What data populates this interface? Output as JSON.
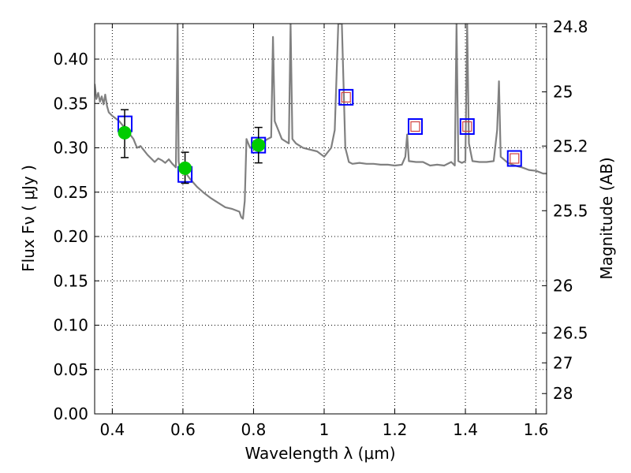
{
  "chart_data": {
    "type": "line",
    "xlabel": "Wavelength  λ (μm)",
    "ylabel": "Flux  Fν  ( μJy )",
    "ylabel_right": "Magnitude (AB)",
    "xlim": [
      0.35,
      1.63
    ],
    "ylim": [
      0.0,
      0.44
    ],
    "grid": true,
    "x_ticks": [
      0.4,
      0.6,
      0.8,
      1.0,
      1.2,
      1.4,
      1.6
    ],
    "x_tick_labels": [
      "0.4",
      "0.6",
      "0.8",
      "1",
      "1.2",
      "1.4",
      "1.6"
    ],
    "y_ticks": [
      0.0,
      0.05,
      0.1,
      0.15,
      0.2,
      0.25,
      0.3,
      0.35,
      0.4
    ],
    "y_tick_labels": [
      "0.00",
      "0.05",
      "0.10",
      "0.15",
      "0.20",
      "0.25",
      "0.30",
      "0.35",
      "0.40"
    ],
    "mag_ticks": [
      24.8,
      25,
      25.2,
      25.5,
      26,
      26.5,
      27,
      28
    ],
    "mag_tick_labels": [
      "24.8",
      "25",
      "25.2",
      "25.5",
      "26",
      "26.5",
      "27",
      "28"
    ],
    "series": [
      {
        "kind": "spectrum",
        "color": "#808080",
        "x": [
          0.35,
          0.355,
          0.36,
          0.365,
          0.37,
          0.375,
          0.38,
          0.385,
          0.39,
          0.4,
          0.41,
          0.42,
          0.43,
          0.44,
          0.45,
          0.46,
          0.47,
          0.48,
          0.49,
          0.5,
          0.51,
          0.52,
          0.53,
          0.54,
          0.55,
          0.56,
          0.57,
          0.58,
          0.585,
          0.588,
          0.59,
          0.6,
          0.62,
          0.64,
          0.66,
          0.68,
          0.7,
          0.72,
          0.74,
          0.76,
          0.765,
          0.77,
          0.775,
          0.78,
          0.79,
          0.8,
          0.82,
          0.84,
          0.85,
          0.855,
          0.86,
          0.87,
          0.88,
          0.9,
          0.905,
          0.91,
          0.92,
          0.94,
          0.96,
          0.98,
          1.0,
          1.02,
          1.03,
          1.04,
          1.05,
          1.06,
          1.065,
          1.07,
          1.08,
          1.1,
          1.12,
          1.14,
          1.16,
          1.18,
          1.2,
          1.22,
          1.23,
          1.235,
          1.24,
          1.26,
          1.28,
          1.3,
          1.32,
          1.34,
          1.36,
          1.37,
          1.375,
          1.38,
          1.39,
          1.4,
          1.405,
          1.41,
          1.42,
          1.44,
          1.46,
          1.48,
          1.49,
          1.495,
          1.5,
          1.52,
          1.54,
          1.56,
          1.58,
          1.6,
          1.62,
          1.63
        ],
        "y": [
          0.372,
          0.355,
          0.362,
          0.352,
          0.358,
          0.349,
          0.36,
          0.347,
          0.34,
          0.336,
          0.333,
          0.33,
          0.325,
          0.323,
          0.315,
          0.31,
          0.3,
          0.302,
          0.297,
          0.292,
          0.288,
          0.284,
          0.288,
          0.286,
          0.283,
          0.287,
          0.282,
          0.278,
          0.44,
          0.285,
          0.279,
          0.276,
          0.265,
          0.256,
          0.249,
          0.243,
          0.238,
          0.233,
          0.231,
          0.228,
          0.222,
          0.22,
          0.24,
          0.31,
          0.3,
          0.301,
          0.305,
          0.31,
          0.312,
          0.425,
          0.33,
          0.32,
          0.31,
          0.305,
          0.44,
          0.31,
          0.305,
          0.3,
          0.298,
          0.296,
          0.29,
          0.3,
          0.32,
          0.44,
          0.44,
          0.3,
          0.292,
          0.284,
          0.282,
          0.283,
          0.282,
          0.282,
          0.281,
          0.281,
          0.28,
          0.281,
          0.29,
          0.315,
          0.285,
          0.284,
          0.284,
          0.28,
          0.281,
          0.28,
          0.284,
          0.28,
          0.44,
          0.285,
          0.283,
          0.285,
          0.44,
          0.305,
          0.285,
          0.284,
          0.284,
          0.285,
          0.32,
          0.375,
          0.29,
          0.283,
          0.28,
          0.278,
          0.275,
          0.274,
          0.271,
          0.271
        ]
      },
      {
        "kind": "model-photometry",
        "marker": "square",
        "edge_color": "#0000ff",
        "x": [
          0.436,
          0.606,
          0.814,
          1.062,
          1.258,
          1.405,
          1.539
        ],
        "y": [
          0.327,
          0.27,
          0.303,
          0.357,
          0.324,
          0.324,
          0.288
        ]
      },
      {
        "kind": "model-photometry-inner",
        "marker": "square",
        "edge_color": "#d04040",
        "x": [
          1.062,
          1.258,
          1.405,
          1.539
        ],
        "y": [
          0.357,
          0.324,
          0.324,
          0.288
        ]
      },
      {
        "kind": "observed",
        "marker": "circle",
        "color": "#00cc00",
        "x": [
          0.435,
          0.606,
          0.814
        ],
        "y": [
          0.317,
          0.277,
          0.303
        ],
        "yerr_low": [
          0.289,
          0.26,
          0.283
        ],
        "yerr_high": [
          0.343,
          0.295,
          0.323
        ]
      }
    ]
  }
}
